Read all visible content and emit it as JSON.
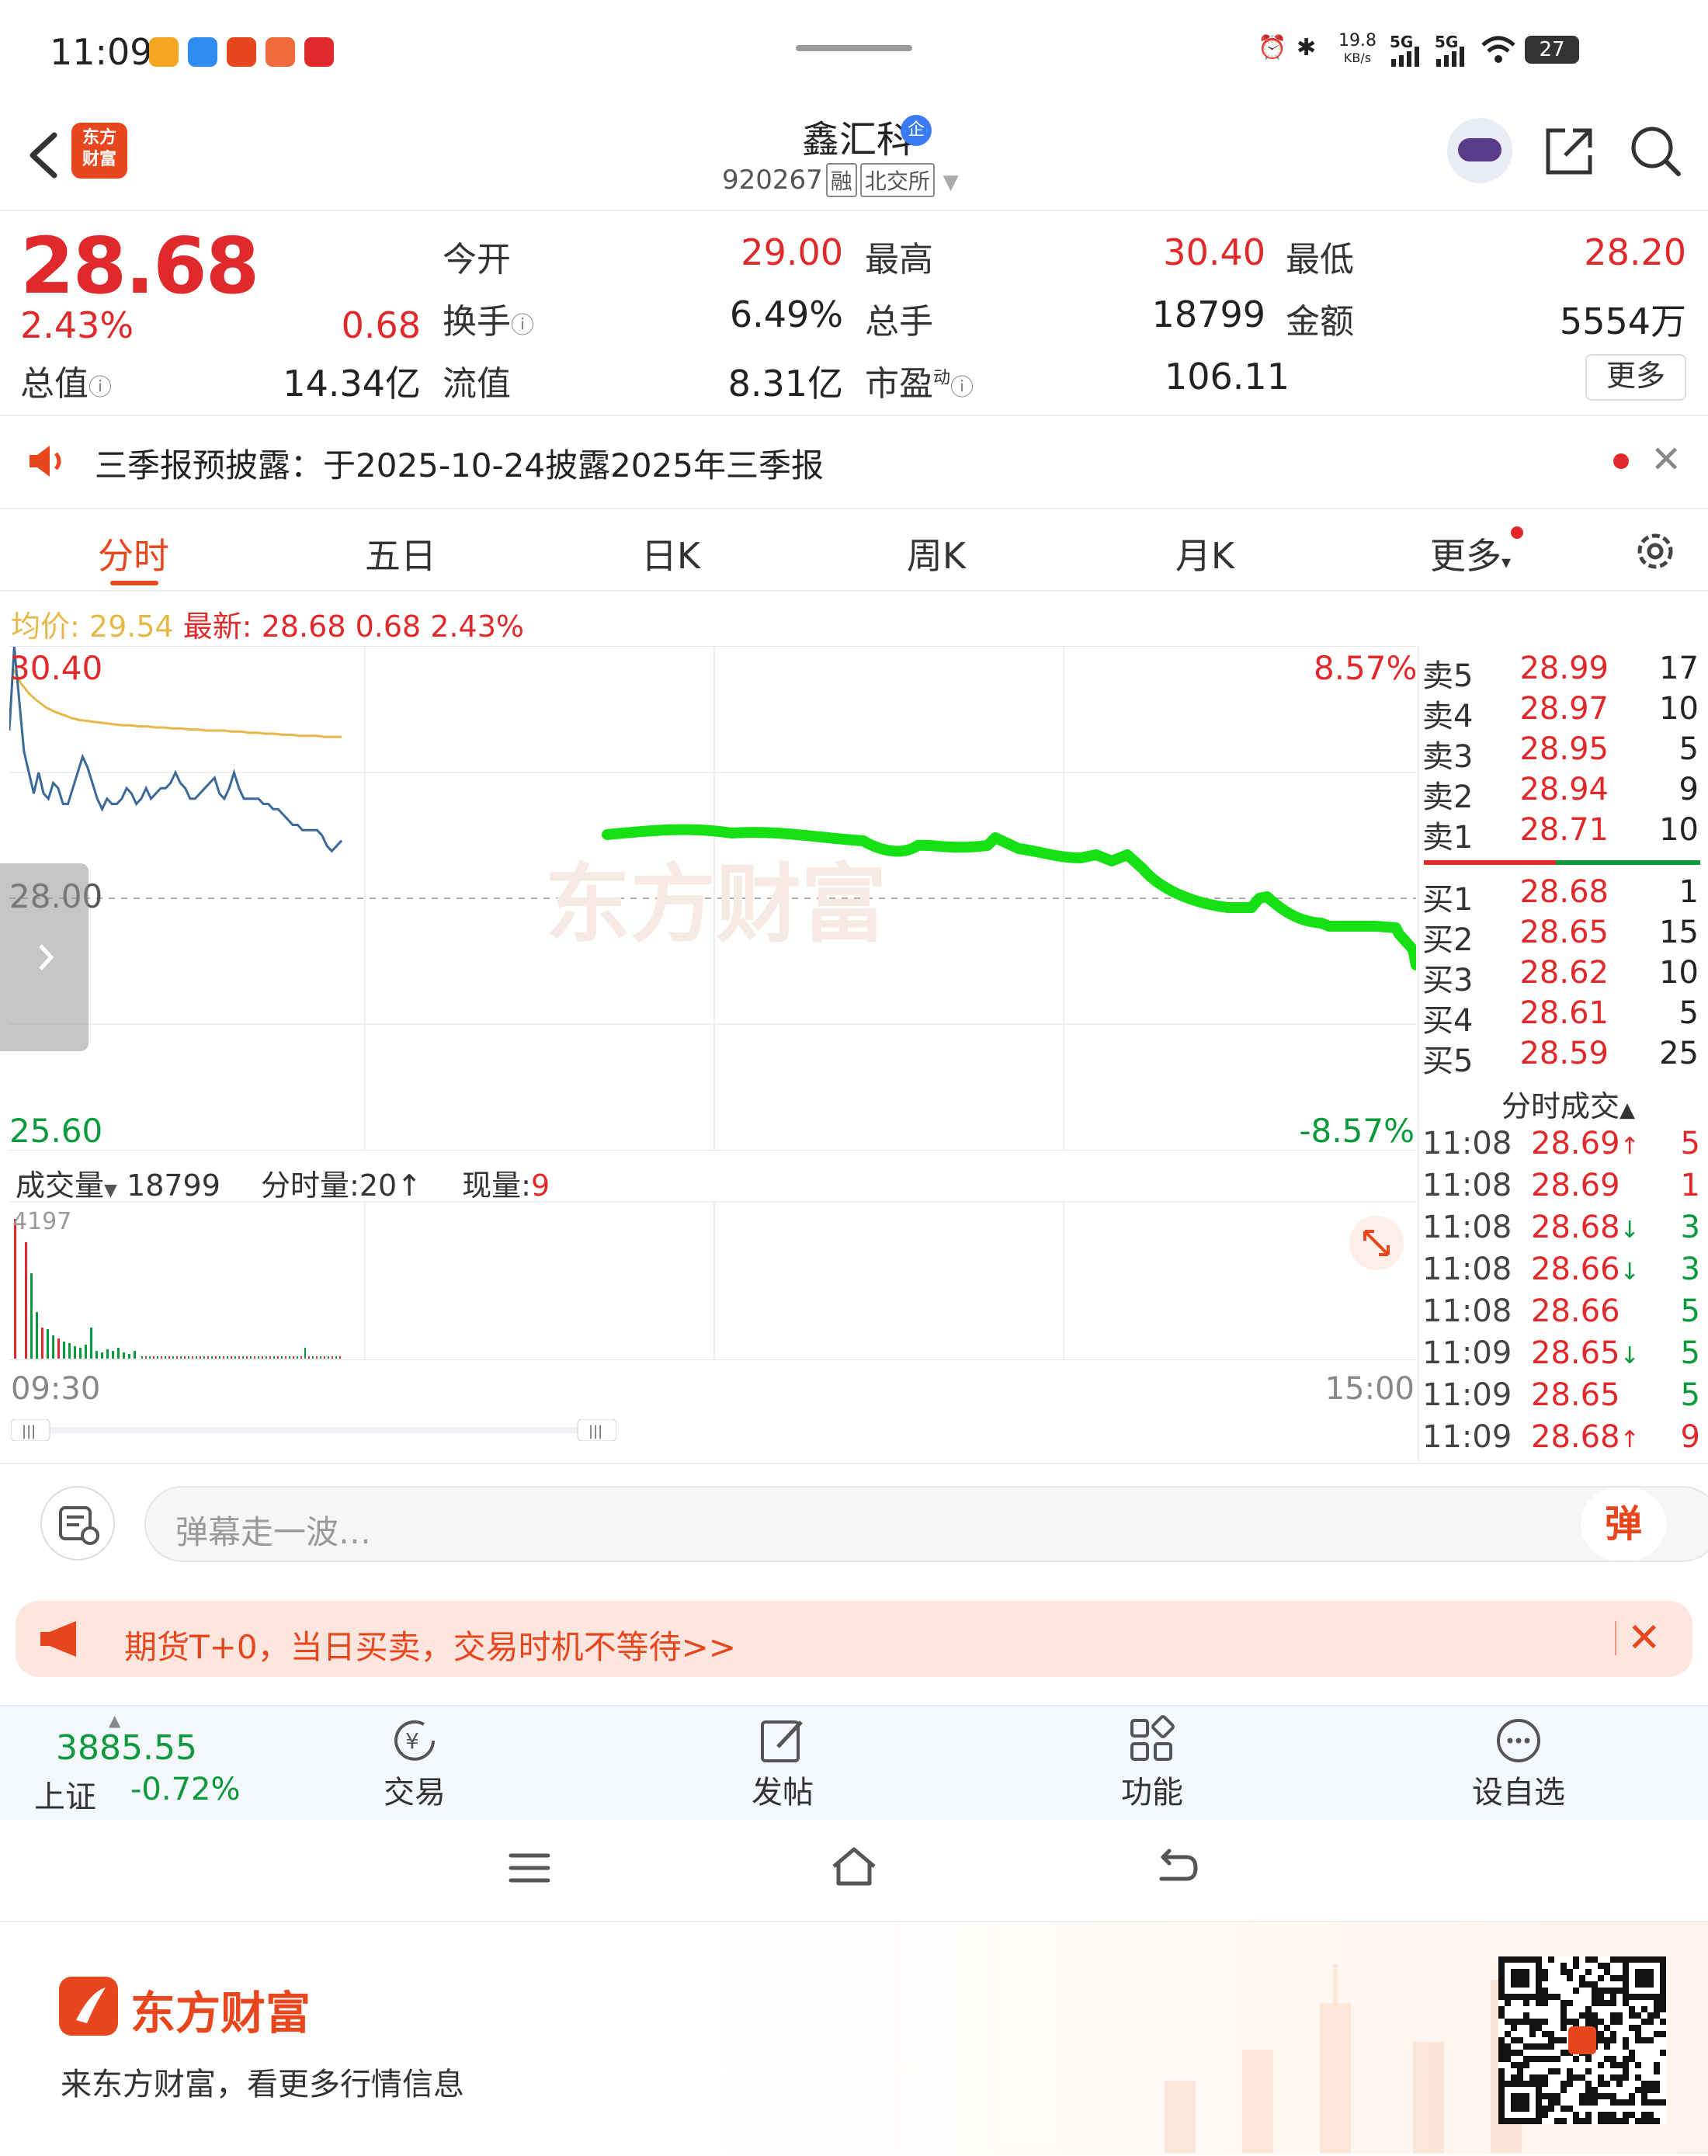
{
  "status": {
    "time": "11:09",
    "speed_top": "19.8",
    "speed_unit": "KB/s",
    "net1": "5G",
    "net2": "5G",
    "battery": "27"
  },
  "header": {
    "stock_name": "鑫汇科",
    "stock_code": "920267",
    "tags": [
      "融",
      "北交所"
    ],
    "logo_line1": "东方",
    "logo_line2": "财富",
    "badge": "企"
  },
  "quote": {
    "price": "28.68",
    "change_pct": "2.43%",
    "change_abs": "0.68",
    "open_label": "今开",
    "open": "29.00",
    "high_label": "最高",
    "high": "30.40",
    "low_label": "最低",
    "low": "28.20",
    "turnover_label": "换手",
    "turnover": "6.49%",
    "volume_label": "总手",
    "volume": "18799",
    "amount_label": "金额",
    "amount": "5554万",
    "mktcap_label": "总值",
    "mktcap": "14.34亿",
    "float_label": "流值",
    "float_cap": "8.31亿",
    "pe_label": "市盈",
    "pe_sup": "动",
    "pe": "106.11",
    "more": "更多"
  },
  "notice": {
    "text": "三季报预披露：于2025-10-24披露2025年三季报"
  },
  "tabs": [
    {
      "label": "分时",
      "active": true
    },
    {
      "label": "五日"
    },
    {
      "label": "日K"
    },
    {
      "label": "周K"
    },
    {
      "label": "月K"
    },
    {
      "label": "更多"
    }
  ],
  "avgline": {
    "avg_label": "均价:",
    "avg": "29.54",
    "latest_label": "最新:",
    "latest": "28.68",
    "chg": "0.68",
    "pct": "2.43%"
  },
  "chart": {
    "y_top": "30.40",
    "y_mid": "28.00",
    "y_bottom": "25.60",
    "pct_top": "8.57%",
    "pct_bottom": "-8.57%",
    "x_start": "09:30",
    "x_end": "15:00",
    "watermark": "东方财富",
    "price_series": [
      29.6,
      30.4,
      29.9,
      29.4,
      29.2,
      29.0,
      29.2,
      29.0,
      28.95,
      29.1,
      29.05,
      28.9,
      28.9,
      29.05,
      29.2,
      29.35,
      29.25,
      29.1,
      28.95,
      28.85,
      28.95,
      28.9,
      28.9,
      28.95,
      29.05,
      29.0,
      28.9,
      28.95,
      29.05,
      28.95,
      29.0,
      29.05,
      29.05,
      29.1,
      29.2,
      29.1,
      29.05,
      28.95,
      28.95,
      29.0,
      29.05,
      29.1,
      29.15,
      29.0,
      28.95,
      29.05,
      29.2,
      29.05,
      28.95,
      28.95,
      28.95,
      28.95,
      28.9,
      28.9,
      28.85,
      28.85,
      28.8,
      28.75,
      28.7,
      28.7,
      28.65,
      28.65,
      28.65,
      28.65,
      28.6,
      28.5,
      28.45,
      28.5,
      28.55
    ],
    "avg_series": [
      30.2,
      30.05,
      29.95,
      29.88,
      29.82,
      29.78,
      29.75,
      29.72,
      29.7,
      29.69,
      29.68,
      29.67,
      29.66,
      29.65,
      29.65,
      29.64,
      29.64,
      29.63,
      29.63,
      29.62,
      29.62,
      29.61,
      29.61,
      29.6,
      29.6,
      29.6,
      29.59,
      29.59,
      29.58,
      29.58,
      29.57,
      29.57,
      29.56,
      29.56,
      29.55,
      29.55,
      29.55,
      29.54,
      29.54,
      29.54
    ],
    "volume_label": "成交量",
    "volume_total": "18799",
    "min_vol_label": "分时量:20",
    "cur_vol_label": "现量:",
    "cur_vol": "9",
    "vol_max": "4197"
  },
  "orderbook": {
    "sell": [
      {
        "label": "卖5",
        "price": "28.99",
        "qty": "17"
      },
      {
        "label": "卖4",
        "price": "28.97",
        "qty": "10"
      },
      {
        "label": "卖3",
        "price": "28.95",
        "qty": "5"
      },
      {
        "label": "卖2",
        "price": "28.94",
        "qty": "9"
      },
      {
        "label": "卖1",
        "price": "28.71",
        "qty": "10"
      }
    ],
    "buy": [
      {
        "label": "买1",
        "price": "28.68",
        "qty": "1"
      },
      {
        "label": "买2",
        "price": "28.65",
        "qty": "15"
      },
      {
        "label": "买3",
        "price": "28.62",
        "qty": "10"
      },
      {
        "label": "买4",
        "price": "28.61",
        "qty": "5"
      },
      {
        "label": "买5",
        "price": "28.59",
        "qty": "25"
      }
    ],
    "ticks_title": "分时成交",
    "ticks": [
      {
        "time": "11:08",
        "price": "28.69",
        "arrow": "↑",
        "qty": "5",
        "dir": "up"
      },
      {
        "time": "11:08",
        "price": "28.69",
        "arrow": "",
        "qty": "1",
        "dir": "up"
      },
      {
        "time": "11:08",
        "price": "28.68",
        "arrow": "↓",
        "qty": "3",
        "dir": "down"
      },
      {
        "time": "11:08",
        "price": "28.66",
        "arrow": "↓",
        "qty": "3",
        "dir": "down"
      },
      {
        "time": "11:08",
        "price": "28.66",
        "arrow": "",
        "qty": "5",
        "dir": "down"
      },
      {
        "time": "11:09",
        "price": "28.65",
        "arrow": "↓",
        "qty": "5",
        "dir": "down"
      },
      {
        "time": "11:09",
        "price": "28.65",
        "arrow": "",
        "qty": "5",
        "dir": "down"
      },
      {
        "time": "11:09",
        "price": "28.68",
        "arrow": "↑",
        "qty": "9",
        "dir": "up"
      }
    ]
  },
  "danmu": {
    "placeholder": "弹幕走一波…",
    "button": "弹"
  },
  "ad": {
    "text": "期货T+0，当日买卖，交易时机不等待>>"
  },
  "bottombar": {
    "index_value": "3885.55",
    "index_name": "上证",
    "index_pct": "-0.72%",
    "items": [
      "交易",
      "发帖",
      "功能",
      "设自选"
    ]
  },
  "promo": {
    "brand": "东方财富",
    "subtitle": "来东方财富，看更多行情信息"
  },
  "colors": {
    "up": "#e0292a",
    "down": "#0a9a3c",
    "accent": "#e8461c",
    "price_line": "#3b6a98",
    "avg_line": "#e6b84a",
    "drawn_line": "#14e014"
  }
}
